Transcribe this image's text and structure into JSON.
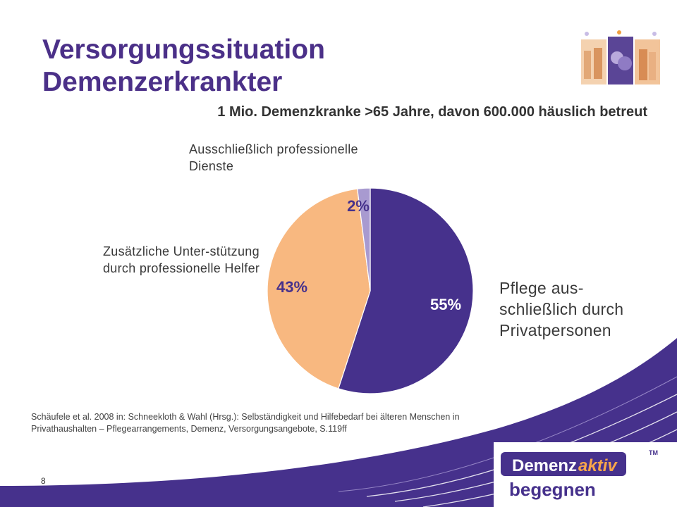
{
  "slide": {
    "title": "Versorgungssituation Demenzerkrankter",
    "subtitle": "1 Mio. Demenzkranke >65 Jahre, davon 600.000 häuslich betreut",
    "labels": {
      "professional": "Ausschließlich professionelle Dienste",
      "additional": "Zusätzliche Unter-stützung durch professionelle Helfer",
      "private": "Pflege aus-schließlich durch Privatpersonen"
    },
    "source": "Schäufele et al. 2008 in: Schneekloth & Wahl (Hrsg.): Selbständigkeit und Hilfebedarf bei älteren Menschen in Privathaushalten – Pflegearrangements, Demenz, Versorgungsangebote, S.119ff",
    "page_number": "8",
    "logo": {
      "line1_a": "Demenz",
      "line1_b": "aktiv",
      "tm": "TM",
      "line2": "begegnen"
    }
  },
  "chart_data": {
    "type": "pie",
    "slices": [
      {
        "label": "Pflege aus-schließlich durch Privatpersonen",
        "value": 55,
        "value_label": "55%",
        "color": "#46318c"
      },
      {
        "label": "Zusätzliche Unter-stützung durch professionelle Helfer",
        "value": 43,
        "value_label": "43%",
        "color": "#f8b880"
      },
      {
        "label": "Ausschließlich professionelle Dienste",
        "value": 2,
        "value_label": "2%",
        "color": "#a89ad0"
      }
    ],
    "start": "12 o'clock",
    "direction": "clockwise"
  },
  "colors": {
    "title": "#4b3088",
    "band": "#46318c",
    "slice_label_dark": "#46318c",
    "slice_label_light": "#ffffff"
  }
}
